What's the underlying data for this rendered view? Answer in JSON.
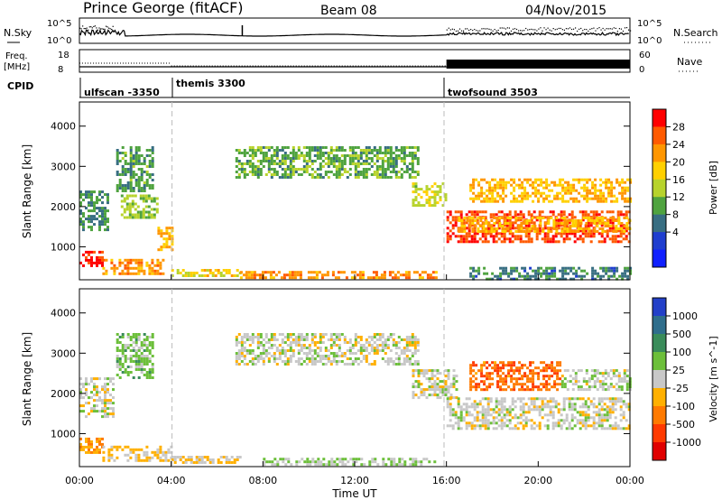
{
  "header": {
    "station": "Prince George (fitACF)",
    "beam": "Beam 08",
    "date": "04/Nov/2015"
  },
  "top_strip": {
    "left_label": "N.Sky",
    "left_ticks": [
      "10^5",
      "10^0"
    ],
    "right_label": "N.Search",
    "right_ticks": [
      "10^5",
      "10^0"
    ]
  },
  "freq_strip": {
    "left_label_1": "Freq.",
    "left_label_2": "[MHz]",
    "left_ticks": [
      "18",
      "8"
    ],
    "right_label": "Nave",
    "right_ticks": [
      "60",
      "0"
    ]
  },
  "cpid": {
    "label": "CPID",
    "segments": [
      {
        "name": "ulfscan -3350",
        "start_hr": 0,
        "end_hr": 4
      },
      {
        "name": "themis 3300",
        "start_hr": 4,
        "end_hr": 16
      },
      {
        "name": "twofsound 3503",
        "start_hr": 16,
        "end_hr": 24
      }
    ]
  },
  "panels": {
    "ylabel": "Slant Range [km]",
    "yticks": [
      "4000",
      "3000",
      "2000",
      "1000"
    ],
    "xlabel": "Time UT",
    "xticks": [
      "00:00",
      "04:00",
      "08:00",
      "12:00",
      "16:00",
      "20:00",
      "00:00"
    ]
  },
  "colorbars": {
    "power_label": "Power [dB]",
    "power_ticks": [
      "28",
      "24",
      "20",
      "16",
      "12",
      "8",
      "4"
    ],
    "power_colors": [
      "#ff0000",
      "#ff5a00",
      "#ff9600",
      "#ffd000",
      "#b7d32c",
      "#4fa33f",
      "#386e82",
      "#1f3ecf",
      "#1020ff"
    ],
    "velocity_label": "Velocity [m s^-1]",
    "velocity_ticks": [
      "1000",
      "500",
      "100",
      "25",
      "-25",
      "-100",
      "-500",
      "-1000"
    ],
    "velocity_colors": [
      "#2340c8",
      "#2f6e8c",
      "#3a8c5a",
      "#6cbf3a",
      "#c8c8c8",
      "#ffb000",
      "#ff7a00",
      "#ff3a00",
      "#e00000"
    ]
  },
  "chart_data": [
    {
      "type": "heatmap",
      "title": "",
      "xlabel": "Time UT",
      "ylabel": "Slant Range [km]",
      "xlim": [
        0,
        24
      ],
      "ylim": [
        180,
        4600
      ],
      "colorbar": "Power [dB]",
      "colorbar_range": [
        0,
        30
      ],
      "regions": [
        {
          "t0": 0.0,
          "t1": 1.2,
          "r0": 1400,
          "r1": 2400,
          "value": 10
        },
        {
          "t0": 0.0,
          "t1": 1.0,
          "r0": 500,
          "r1": 900,
          "value": 27
        },
        {
          "t0": 1.0,
          "t1": 3.6,
          "r0": 350,
          "r1": 700,
          "value": 22
        },
        {
          "t0": 1.8,
          "t1": 3.4,
          "r0": 1700,
          "r1": 2300,
          "value": 14
        },
        {
          "t0": 1.6,
          "t1": 3.2,
          "r0": 2400,
          "r1": 3500,
          "value": 11
        },
        {
          "t0": 3.4,
          "t1": 4.0,
          "r0": 900,
          "r1": 1500,
          "value": 20
        },
        {
          "t0": 4.0,
          "t1": 7.0,
          "r0": 250,
          "r1": 450,
          "value": 18
        },
        {
          "t0": 7.0,
          "t1": 15.5,
          "r0": 250,
          "r1": 400,
          "value": 22
        },
        {
          "t0": 6.8,
          "t1": 14.8,
          "r0": 2700,
          "r1": 3500,
          "value": 12
        },
        {
          "t0": 14.5,
          "t1": 16.0,
          "r0": 2000,
          "r1": 2600,
          "value": 16
        },
        {
          "t0": 16.0,
          "t1": 24.0,
          "r0": 1150,
          "r1": 1900,
          "value": 26
        },
        {
          "t0": 16.5,
          "t1": 24.0,
          "r0": 1400,
          "r1": 1750,
          "value": 20
        },
        {
          "t0": 17.0,
          "t1": 24.0,
          "r0": 2100,
          "r1": 2700,
          "value": 20
        },
        {
          "t0": 17.0,
          "t1": 24.0,
          "r0": 200,
          "r1": 500,
          "value": 9
        }
      ]
    },
    {
      "type": "heatmap",
      "title": "",
      "xlabel": "Time UT",
      "ylabel": "Slant Range [km]",
      "xlim": [
        0,
        24
      ],
      "ylim": [
        180,
        4600
      ],
      "colorbar": "Velocity [m s^-1]",
      "colorbar_range": [
        -1000,
        1000
      ],
      "regions": [
        {
          "t0": 0.0,
          "t1": 1.0,
          "r0": 500,
          "r1": 900,
          "value": -300
        },
        {
          "t0": 1.0,
          "t1": 4.0,
          "r0": 350,
          "r1": 700,
          "value": -150
        },
        {
          "t0": 0.0,
          "t1": 1.5,
          "r0": 1400,
          "r1": 2400,
          "value": 0
        },
        {
          "t0": 1.6,
          "t1": 3.2,
          "r0": 2400,
          "r1": 3500,
          "value": 200
        },
        {
          "t0": 4.0,
          "t1": 7.0,
          "r0": 250,
          "r1": 450,
          "value": -120
        },
        {
          "t0": 6.8,
          "t1": 14.8,
          "r0": 2700,
          "r1": 3500,
          "value": 0
        },
        {
          "t0": 8.0,
          "t1": 15.5,
          "r0": 250,
          "r1": 400,
          "value": 80
        },
        {
          "t0": 14.5,
          "t1": 16.5,
          "r0": 1900,
          "r1": 2600,
          "value": 0
        },
        {
          "t0": 16.0,
          "t1": 24.0,
          "r0": 1150,
          "r1": 1900,
          "value": 0
        },
        {
          "t0": 17.0,
          "t1": 21.0,
          "r0": 2100,
          "r1": 2800,
          "value": -500
        },
        {
          "t0": 21.0,
          "t1": 24.0,
          "r0": 2100,
          "r1": 2600,
          "value": 50
        }
      ]
    }
  ]
}
